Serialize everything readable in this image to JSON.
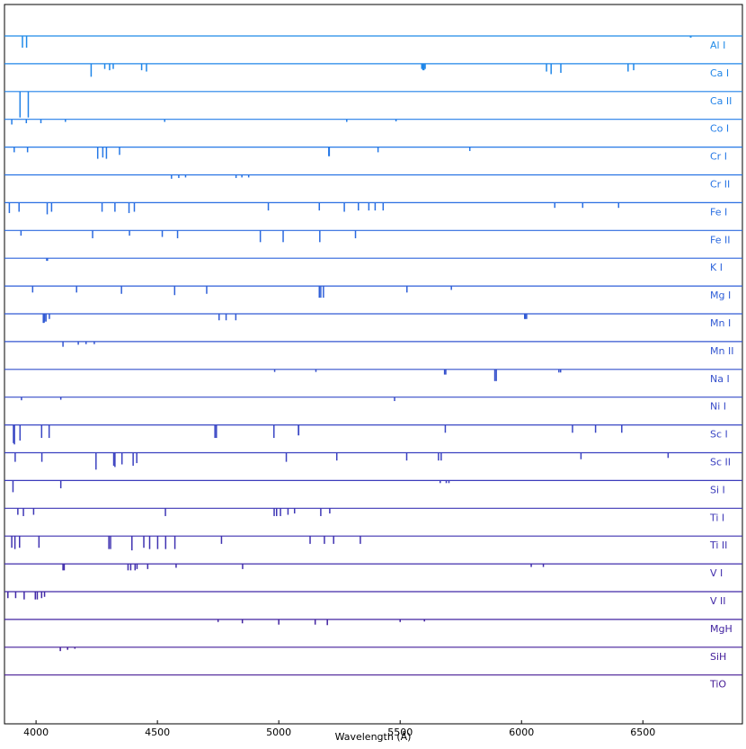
{
  "chart_data": {
    "type": "spectra",
    "xlabel": "Wavelength (Å)",
    "xlim": [
      3870,
      6910
    ],
    "xticks": [
      4000,
      4500,
      5000,
      5500,
      6000,
      6500
    ],
    "series": [
      {
        "name": "Al I",
        "color": "#1f8ae8",
        "x": [
          3944,
          3961,
          6696,
          6698
        ],
        "values": [
          0.45,
          0.45,
          0.06,
          0.06
        ]
      },
      {
        "name": "Ca I",
        "color": "#1f86e8",
        "x": [
          4227,
          4283,
          4303,
          4318,
          4435,
          4455,
          5589,
          5594,
          5598,
          5603,
          6103,
          6122,
          6162,
          6439,
          6462
        ],
        "values": [
          0.5,
          0.2,
          0.25,
          0.2,
          0.25,
          0.3,
          0.2,
          0.25,
          0.25,
          0.2,
          0.3,
          0.4,
          0.35,
          0.3,
          0.25
        ]
      },
      {
        "name": "Ca II",
        "color": "#2182e8",
        "x": [
          3934,
          3968
        ],
        "values": [
          1.0,
          1.0
        ]
      },
      {
        "name": "Co I",
        "color": "#237de8",
        "x": [
          3900,
          3960,
          4020,
          4121,
          4530,
          5280,
          5483
        ],
        "values": [
          0.2,
          0.15,
          0.15,
          0.1,
          0.1,
          0.1,
          0.08
        ]
      },
      {
        "name": "Cr I",
        "color": "#2578e6",
        "x": [
          3910,
          3965,
          4254,
          4275,
          4290,
          4344,
          5206,
          5208,
          5409,
          5787
        ],
        "values": [
          0.2,
          0.2,
          0.45,
          0.4,
          0.45,
          0.3,
          0.35,
          0.35,
          0.2,
          0.15
        ]
      },
      {
        "name": "Cr II",
        "color": "#2773e4",
        "x": [
          4558,
          4588,
          4616,
          4824,
          4848,
          4876
        ],
        "values": [
          0.15,
          0.12,
          0.1,
          0.12,
          0.1,
          0.1
        ]
      },
      {
        "name": "Fe I",
        "color": "#296ee2",
        "x": [
          3890,
          3930,
          4046,
          4064,
          4272,
          4325,
          4383,
          4405,
          4957,
          5167,
          5270,
          5328,
          5371,
          5397,
          5430,
          6137,
          6252,
          6400
        ],
        "values": [
          0.4,
          0.35,
          0.45,
          0.35,
          0.35,
          0.35,
          0.4,
          0.35,
          0.3,
          0.3,
          0.35,
          0.3,
          0.3,
          0.3,
          0.3,
          0.2,
          0.2,
          0.2
        ]
      },
      {
        "name": "Fe II",
        "color": "#2b69df",
        "x": [
          3938,
          4233,
          4385,
          4520,
          4583,
          4924,
          5018,
          5169,
          5316
        ],
        "values": [
          0.2,
          0.3,
          0.2,
          0.25,
          0.3,
          0.45,
          0.45,
          0.45,
          0.3
        ]
      },
      {
        "name": "K I",
        "color": "#2d64dc",
        "x": [
          4044,
          4047
        ],
        "values": [
          0.1,
          0.1
        ]
      },
      {
        "name": "Mg I",
        "color": "#2f5fd8",
        "x": [
          3832,
          3986,
          4167,
          4352,
          4571,
          4703,
          5167,
          5173,
          5184,
          5528,
          5711
        ],
        "values": [
          0.3,
          0.25,
          0.25,
          0.3,
          0.35,
          0.3,
          0.45,
          0.45,
          0.45,
          0.25,
          0.15
        ]
      },
      {
        "name": "Mn I",
        "color": "#315ad4",
        "x": [
          4030,
          4033,
          4035,
          4041,
          4055,
          4754,
          4783,
          4823,
          6013,
          6016,
          6021
        ],
        "values": [
          0.35,
          0.35,
          0.3,
          0.3,
          0.2,
          0.25,
          0.25,
          0.25,
          0.2,
          0.2,
          0.2
        ]
      },
      {
        "name": "Mn II",
        "color": "#3355d0",
        "x": [
          4111,
          4174,
          4206,
          4240
        ],
        "values": [
          0.2,
          0.12,
          0.1,
          0.1
        ]
      },
      {
        "name": "Na I",
        "color": "#3550cc",
        "x": [
          4983,
          5153,
          5683,
          5688,
          5890,
          5896,
          6154,
          6161
        ],
        "values": [
          0.1,
          0.1,
          0.2,
          0.2,
          0.45,
          0.45,
          0.12,
          0.12
        ]
      },
      {
        "name": "Ni I",
        "color": "#374bc8",
        "x": [
          3940,
          4102,
          5477
        ],
        "values": [
          0.12,
          0.1,
          0.15
        ]
      },
      {
        "name": "Sc I",
        "color": "#3946c4",
        "x": [
          3907,
          3911,
          3934,
          4023,
          4054,
          4737,
          4743,
          4980,
          5081,
          5082,
          5686,
          6210,
          6305,
          6413
        ],
        "values": [
          0.7,
          0.75,
          0.6,
          0.5,
          0.5,
          0.5,
          0.5,
          0.5,
          0.4,
          0.4,
          0.3,
          0.3,
          0.3,
          0.3
        ]
      },
      {
        "name": "Sc II",
        "color": "#3b41c0",
        "x": [
          3914,
          4024,
          4247,
          4320,
          4325,
          4354,
          4400,
          4415,
          5031,
          5239,
          5527,
          5658,
          5669,
          6245,
          6604
        ],
        "values": [
          0.35,
          0.35,
          0.65,
          0.5,
          0.55,
          0.45,
          0.5,
          0.4,
          0.35,
          0.3,
          0.3,
          0.3,
          0.3,
          0.25,
          0.2
        ]
      },
      {
        "name": "Si I",
        "color": "#3c3cbb",
        "x": [
          3905,
          4102,
          5665,
          5690,
          5701
        ],
        "values": [
          0.45,
          0.3,
          0.1,
          0.1,
          0.1
        ]
      },
      {
        "name": "Ti I",
        "color": "#3e37b6",
        "x": [
          3925,
          3948,
          3990,
          4533,
          4981,
          4991,
          5007,
          5038,
          5065,
          5173,
          5210
        ],
        "values": [
          0.25,
          0.3,
          0.25,
          0.3,
          0.3,
          0.3,
          0.3,
          0.25,
          0.2,
          0.3,
          0.2
        ]
      },
      {
        "name": "Ti II",
        "color": "#3f32b1",
        "x": [
          3900,
          3913,
          3932,
          4012,
          4300,
          4307,
          4395,
          4444,
          4468,
          4501,
          4534,
          4572,
          4764,
          5129,
          5188,
          5226,
          5336
        ],
        "values": [
          0.45,
          0.5,
          0.45,
          0.45,
          0.5,
          0.5,
          0.55,
          0.45,
          0.5,
          0.5,
          0.5,
          0.5,
          0.3,
          0.3,
          0.3,
          0.3,
          0.3
        ]
      },
      {
        "name": "V I",
        "color": "#402dac",
        "x": [
          4111,
          4116,
          4379,
          4390,
          4408,
          4416,
          4460,
          4577,
          4851,
          6040,
          6090
        ],
        "values": [
          0.25,
          0.25,
          0.25,
          0.25,
          0.25,
          0.2,
          0.2,
          0.15,
          0.2,
          0.12,
          0.12
        ]
      },
      {
        "name": "V II",
        "color": "#4128a6",
        "x": [
          3884,
          3916,
          3951,
          3997,
          4005,
          4023,
          4035
        ],
        "values": [
          0.25,
          0.25,
          0.3,
          0.3,
          0.3,
          0.25,
          0.2
        ]
      },
      {
        "name": "MgH",
        "color": "#4223a0",
        "x": [
          4750,
          4850,
          5000,
          5150,
          5200,
          5500,
          5600
        ],
        "values": [
          0.1,
          0.15,
          0.2,
          0.2,
          0.22,
          0.1,
          0.08
        ]
      },
      {
        "name": "SiH",
        "color": "#431e9a",
        "x": [
          4100,
          4130,
          4160
        ],
        "values": [
          0.15,
          0.1,
          0.06
        ]
      },
      {
        "name": "TiO",
        "color": "#441a94",
        "x": [],
        "values": []
      }
    ]
  }
}
